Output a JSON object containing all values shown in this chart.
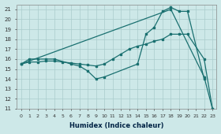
{
  "xlabel": "Humidex (Indice chaleur)",
  "bg_color": "#cde8e8",
  "grid_color": "#aacccc",
  "line_color": "#1a7070",
  "xlim": [
    -0.5,
    23.5
  ],
  "ylim": [
    11,
    21.5
  ],
  "yticks": [
    11,
    12,
    13,
    14,
    15,
    16,
    17,
    18,
    19,
    20,
    21
  ],
  "xticks": [
    0,
    1,
    2,
    3,
    4,
    5,
    6,
    7,
    8,
    9,
    10,
    11,
    12,
    13,
    14,
    15,
    16,
    17,
    18,
    19,
    20,
    21,
    22,
    23
  ],
  "line1_x": [
    0,
    1,
    2,
    3,
    4,
    6,
    7,
    8,
    9,
    10,
    14,
    15,
    16,
    17,
    18,
    19,
    20,
    22
  ],
  "line1_y": [
    15.5,
    16.0,
    16.0,
    16.0,
    16.0,
    15.5,
    15.3,
    14.8,
    14.0,
    14.2,
    15.5,
    18.5,
    19.2,
    20.8,
    21.2,
    20.8,
    20.8,
    14.0
  ],
  "line2_x": [
    0,
    1,
    2,
    3,
    4,
    5,
    6,
    7,
    8,
    9,
    10,
    11,
    12,
    13,
    14,
    15,
    16,
    17,
    18,
    19,
    20,
    22,
    23
  ],
  "line2_y": [
    15.5,
    15.7,
    15.7,
    15.8,
    15.8,
    15.7,
    15.6,
    15.5,
    15.4,
    15.3,
    15.5,
    16.0,
    16.5,
    17.0,
    17.3,
    17.5,
    17.8,
    18.0,
    18.5,
    18.5,
    18.5,
    16.0,
    11.0
  ],
  "line3_x": [
    0,
    18,
    22,
    23
  ],
  "line3_y": [
    15.5,
    21.0,
    14.2,
    11.0
  ]
}
